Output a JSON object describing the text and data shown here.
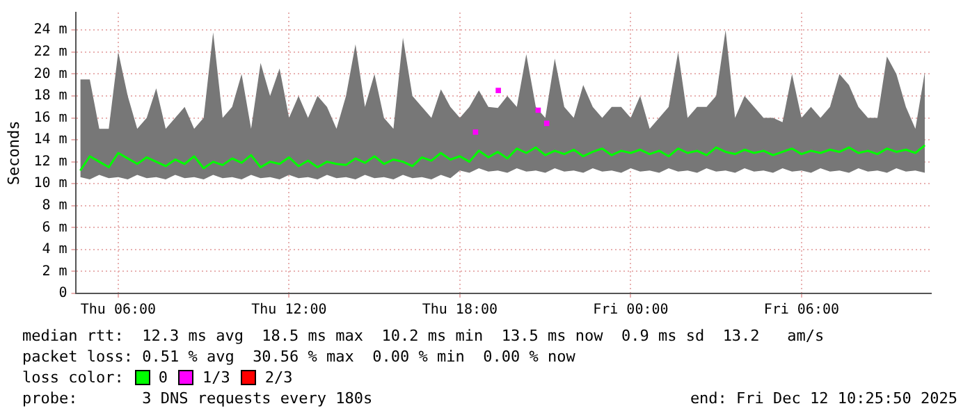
{
  "chart_data": {
    "type": "line",
    "ylabel": "Seconds",
    "legend_title": "loss color:",
    "legend": "bottom",
    "grid": true,
    "marker": "none",
    "line_style": "solid",
    "xlim": [
      "2025-12-11T04:30",
      "2025-12-12T10:33"
    ],
    "xticks": [
      {
        "value": "2025-12-11T06:00",
        "label": "Thu 06:00"
      },
      {
        "value": "2025-12-11T12:00",
        "label": "Thu 12:00"
      },
      {
        "value": "2025-12-11T18:00",
        "label": "Thu 18:00"
      },
      {
        "value": "2025-12-12T00:00",
        "label": "Fri 00:00"
      },
      {
        "value": "2025-12-12T06:00",
        "label": "Fri 06:00"
      }
    ],
    "ylim": [
      0,
      25.6
    ],
    "yticks": [
      0,
      {
        "value": 2,
        "label": "2 m"
      },
      {
        "value": 4,
        "label": "4 m"
      },
      {
        "value": 6,
        "label": "6 m"
      },
      {
        "value": 8,
        "label": "8 m"
      },
      {
        "value": 10,
        "label": "10 m"
      },
      {
        "value": 12,
        "label": "12 m"
      },
      {
        "value": 14,
        "label": "14 m"
      },
      {
        "value": 16,
        "label": "16 m"
      },
      {
        "value": 18,
        "label": "18 m"
      },
      {
        "value": 20,
        "label": "20 m"
      },
      {
        "value": 22,
        "label": "22 m"
      },
      {
        "value": 24,
        "label": "24 m"
      }
    ],
    "x": [
      "2025-12-11T04:40",
      "2025-12-11T05:00",
      "2025-12-11T05:20",
      "2025-12-11T05:40",
      "2025-12-11T06:00",
      "2025-12-11T06:20",
      "2025-12-11T06:40",
      "2025-12-11T07:00",
      "2025-12-11T07:20",
      "2025-12-11T07:40",
      "2025-12-11T08:00",
      "2025-12-11T08:20",
      "2025-12-11T08:40",
      "2025-12-11T09:00",
      "2025-12-11T09:20",
      "2025-12-11T09:40",
      "2025-12-11T10:00",
      "2025-12-11T10:20",
      "2025-12-11T10:40",
      "2025-12-11T11:00",
      "2025-12-11T11:20",
      "2025-12-11T11:40",
      "2025-12-11T12:00",
      "2025-12-11T12:20",
      "2025-12-11T12:40",
      "2025-12-11T13:00",
      "2025-12-11T13:20",
      "2025-12-11T13:40",
      "2025-12-11T14:00",
      "2025-12-11T14:20",
      "2025-12-11T14:40",
      "2025-12-11T15:00",
      "2025-12-11T15:20",
      "2025-12-11T15:40",
      "2025-12-11T16:00",
      "2025-12-11T16:20",
      "2025-12-11T16:40",
      "2025-12-11T17:00",
      "2025-12-11T17:20",
      "2025-12-11T17:40",
      "2025-12-11T18:00",
      "2025-12-11T18:20",
      "2025-12-11T18:40",
      "2025-12-11T19:00",
      "2025-12-11T19:20",
      "2025-12-11T19:40",
      "2025-12-11T20:00",
      "2025-12-11T20:20",
      "2025-12-11T20:40",
      "2025-12-11T21:00",
      "2025-12-11T21:20",
      "2025-12-11T21:40",
      "2025-12-11T22:00",
      "2025-12-11T22:20",
      "2025-12-11T22:40",
      "2025-12-11T23:00",
      "2025-12-11T23:20",
      "2025-12-11T23:40",
      "2025-12-12T00:00",
      "2025-12-12T00:20",
      "2025-12-12T00:40",
      "2025-12-12T01:00",
      "2025-12-12T01:20",
      "2025-12-12T01:40",
      "2025-12-12T02:00",
      "2025-12-12T02:20",
      "2025-12-12T02:40",
      "2025-12-12T03:00",
      "2025-12-12T03:20",
      "2025-12-12T03:40",
      "2025-12-12T04:00",
      "2025-12-12T04:20",
      "2025-12-12T04:40",
      "2025-12-12T05:00",
      "2025-12-12T05:20",
      "2025-12-12T05:40",
      "2025-12-12T06:00",
      "2025-12-12T06:20",
      "2025-12-12T06:40",
      "2025-12-12T07:00",
      "2025-12-12T07:20",
      "2025-12-12T07:40",
      "2025-12-12T08:00",
      "2025-12-12T08:20",
      "2025-12-12T08:40",
      "2025-12-12T09:00",
      "2025-12-12T09:20",
      "2025-12-12T09:40",
      "2025-12-12T10:00",
      "2025-12-12T10:20"
    ],
    "series": [
      {
        "name": "0",
        "color": "#00ff00",
        "values": [
          11.2,
          12.5,
          12,
          11.5,
          12.8,
          12.3,
          11.8,
          12.4,
          12,
          11.6,
          12.2,
          11.8,
          12.5,
          11.4,
          12,
          11.7,
          12.3,
          11.9,
          12.6,
          11.5,
          12,
          11.8,
          12.4,
          11.6,
          12.1,
          11.5,
          12,
          11.8,
          11.7,
          12.3,
          11.9,
          12.5,
          11.8,
          12.2,
          12,
          11.6,
          12.4,
          12.1,
          12.8,
          12.2,
          12.5,
          12,
          13,
          12.4,
          12.9,
          12.3,
          13.2,
          12.8,
          13.3,
          12.6,
          13,
          12.7,
          13.1,
          12.5,
          12.9,
          13.2,
          12.6,
          13,
          12.8,
          13.1,
          12.7,
          13,
          12.5,
          13.2,
          12.8,
          13,
          12.6,
          13.3,
          12.9,
          12.7,
          13.1,
          12.8,
          13,
          12.6,
          12.9,
          13.2,
          12.7,
          13,
          12.8,
          13.1,
          12.9,
          13.3,
          12.8,
          13,
          12.7,
          13.2,
          12.9,
          13.1,
          12.8,
          13.5
        ],
        "upper": [
          19.5,
          19.5,
          15,
          15,
          22,
          18,
          15,
          16,
          18.7,
          15,
          16,
          17,
          15,
          16,
          23.8,
          16,
          17,
          20,
          15,
          21,
          18,
          20.5,
          16,
          18,
          16,
          18,
          17,
          15,
          18,
          22.7,
          17,
          20,
          16,
          15,
          23.3,
          18,
          17,
          16,
          18.6,
          17,
          16,
          17,
          18.5,
          17,
          16.9,
          18,
          17,
          21.8,
          17,
          16,
          21.4,
          17,
          16,
          19,
          17,
          16,
          17,
          17,
          16,
          18,
          15,
          16,
          17,
          22,
          16,
          17,
          17,
          18,
          24,
          16,
          18,
          17,
          16,
          16,
          15.6,
          20,
          16,
          17,
          16,
          17,
          20,
          19,
          17,
          16,
          16,
          21.6,
          20,
          17,
          15,
          20.2
        ],
        "lower": [
          10.6,
          10.4,
          10.8,
          10.5,
          10.6,
          10.4,
          10.8,
          10.5,
          10.6,
          10.4,
          10.8,
          10.5,
          10.6,
          10.4,
          10.8,
          10.5,
          10.6,
          10.4,
          10.8,
          10.5,
          10.6,
          10.4,
          10.8,
          10.5,
          10.6,
          10.4,
          10.8,
          10.5,
          10.6,
          10.4,
          10.8,
          10.5,
          10.6,
          10.4,
          10.8,
          10.5,
          10.6,
          10.4,
          10.8,
          10.5,
          11.2,
          11,
          11.4,
          11.1,
          11.2,
          11,
          11.4,
          11.1,
          11.2,
          11,
          11.4,
          11.1,
          11.2,
          11,
          11.4,
          11.1,
          11.2,
          11,
          11.4,
          11.1,
          11.2,
          11,
          11.4,
          11.1,
          11.2,
          11,
          11.4,
          11.1,
          11.2,
          11,
          11.4,
          11.1,
          11.2,
          11,
          11.4,
          11.1,
          11.2,
          11,
          11.4,
          11.1,
          11.2,
          11,
          11.4,
          11.1,
          11.2,
          11,
          11.4,
          11.1,
          11.2,
          11
        ]
      },
      {
        "name": "1/3",
        "type": "scatter",
        "marker": "square",
        "color": "#ff00ff",
        "x": [
          "2025-12-11T18:33",
          "2025-12-11T19:21",
          "2025-12-11T20:45",
          "2025-12-11T21:03"
        ],
        "values": [
          14.7,
          18.5,
          16.7,
          15.5
        ]
      },
      {
        "name": "2/3",
        "type": "scatter",
        "marker": "square",
        "color": "#ff0000",
        "values": [
          null,
          null,
          null,
          null,
          null,
          null,
          null,
          null,
          null,
          null,
          null,
          null,
          null,
          null,
          null,
          null,
          null,
          null,
          null,
          null,
          null,
          null,
          null,
          null,
          null,
          null,
          null,
          null,
          null,
          null,
          null,
          null,
          null,
          null,
          null,
          null,
          null,
          null,
          null,
          null,
          null,
          null,
          null,
          null,
          null,
          null,
          null,
          null,
          null,
          null,
          null,
          null,
          null,
          null,
          null,
          null,
          null,
          null,
          null,
          null,
          null,
          null,
          null,
          null,
          null,
          null,
          null,
          null,
          null,
          null,
          null,
          null,
          null,
          null,
          null,
          null,
          null,
          null,
          null,
          null,
          null,
          null,
          null,
          null,
          null,
          null,
          null,
          null,
          null,
          null
        ]
      }
    ],
    "annotations": [
      "median rtt:  12.3 ms avg  18.5 ms max  10.2 ms min  13.5 ms now  0.9 ms sd  13.2   am/s",
      "packet loss: 0.51 % avg  30.56 % max  0.00 % min  0.00 % now",
      "probe:       3 DNS requests every 180s",
      "end: Fri Dec 12 10:25:50 2025"
    ]
  }
}
